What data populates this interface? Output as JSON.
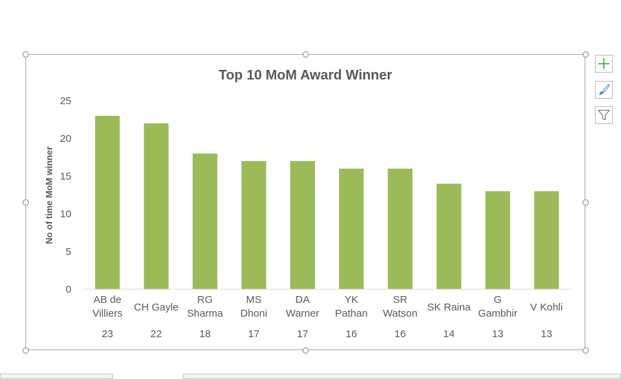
{
  "chart_data": {
    "type": "bar",
    "title": "Top 10 MoM Award Winner",
    "ylabel": "No of time MoM winner",
    "xlabel": "",
    "ylim": [
      0,
      25
    ],
    "yticks": [
      0,
      5,
      10,
      15,
      20,
      25
    ],
    "grid": false,
    "legend": "none",
    "categories": [
      [
        "AB de",
        "Villiers"
      ],
      [
        "CH Gayle"
      ],
      [
        "RG",
        "Sharma"
      ],
      [
        "MS",
        "Dhoni"
      ],
      [
        "DA",
        "Warner"
      ],
      [
        "YK",
        "Pathan"
      ],
      [
        "SR",
        "Watson"
      ],
      [
        "SK Raina"
      ],
      [
        "G",
        "Gambhir"
      ],
      [
        "V Kohli"
      ]
    ],
    "values": [
      23,
      22,
      18,
      17,
      17,
      16,
      16,
      14,
      13,
      13
    ],
    "table_values": [
      "23",
      "22",
      "18",
      "17",
      "17",
      "16",
      "16",
      "14",
      "13",
      "13"
    ]
  },
  "colors": {
    "bar": "#9bbb59",
    "axis": "#d9d9d9",
    "text": "#595959",
    "title": "#595959"
  },
  "side_buttons": {
    "elements": "plus-icon",
    "styles": "brush-icon",
    "filters": "filter-icon"
  }
}
